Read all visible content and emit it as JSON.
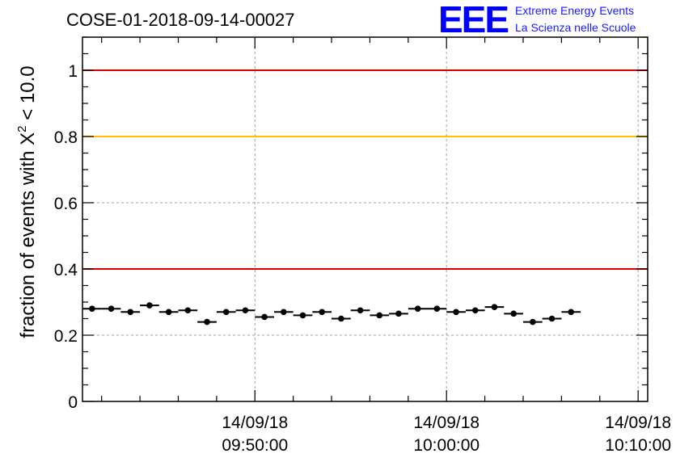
{
  "chart_data": {
    "type": "scatter",
    "title": "COSE-01-2018-09-14-00027",
    "ylabel": {
      "prefix": "fraction of events with ",
      "symbol": "X",
      "exponent": "2",
      "suffix": " < 10.0"
    },
    "ylim": [
      0,
      1.1
    ],
    "yticks": [
      {
        "value": 0,
        "label": "0"
      },
      {
        "value": 0.2,
        "label": "0.2"
      },
      {
        "value": 0.4,
        "label": "0.4"
      },
      {
        "value": 0.6,
        "label": "0.6"
      },
      {
        "value": 0.8,
        "label": "0.8"
      },
      {
        "value": 1,
        "label": "1"
      }
    ],
    "xlim": [
      "09:41:00",
      "10:10:30"
    ],
    "xticks": [
      {
        "time": "09:50:00",
        "date": "14/09/18",
        "label": "09:50:00"
      },
      {
        "time": "10:00:00",
        "date": "14/09/18",
        "label": "10:00:00"
      },
      {
        "time": "10:10:00",
        "date": "14/09/18",
        "label": "10:10:00"
      }
    ],
    "grid": true,
    "reference_lines": [
      {
        "y": 1.0,
        "color": "#e00000"
      },
      {
        "y": 0.8,
        "color": "#ffc000"
      },
      {
        "y": 0.4,
        "color": "#e00000"
      }
    ],
    "bin_width_minutes": 1,
    "points": [
      {
        "x": "09:41:30",
        "y": 0.28
      },
      {
        "x": "09:42:30",
        "y": 0.28
      },
      {
        "x": "09:43:30",
        "y": 0.27
      },
      {
        "x": "09:44:30",
        "y": 0.29
      },
      {
        "x": "09:45:30",
        "y": 0.27
      },
      {
        "x": "09:46:30",
        "y": 0.275
      },
      {
        "x": "09:47:30",
        "y": 0.24
      },
      {
        "x": "09:48:30",
        "y": 0.27
      },
      {
        "x": "09:49:30",
        "y": 0.275
      },
      {
        "x": "09:50:30",
        "y": 0.255
      },
      {
        "x": "09:51:30",
        "y": 0.27
      },
      {
        "x": "09:52:30",
        "y": 0.26
      },
      {
        "x": "09:53:30",
        "y": 0.27
      },
      {
        "x": "09:54:30",
        "y": 0.25
      },
      {
        "x": "09:55:30",
        "y": 0.275
      },
      {
        "x": "09:56:30",
        "y": 0.26
      },
      {
        "x": "09:57:30",
        "y": 0.265
      },
      {
        "x": "09:58:30",
        "y": 0.28
      },
      {
        "x": "09:59:30",
        "y": 0.28
      },
      {
        "x": "10:00:30",
        "y": 0.27
      },
      {
        "x": "10:01:30",
        "y": 0.275
      },
      {
        "x": "10:02:30",
        "y": 0.285
      },
      {
        "x": "10:03:30",
        "y": 0.265
      },
      {
        "x": "10:04:30",
        "y": 0.24
      },
      {
        "x": "10:05:30",
        "y": 0.25
      },
      {
        "x": "10:06:30",
        "y": 0.27
      }
    ],
    "colors": {
      "points": "#000000",
      "grid": "#a0a0a0",
      "axes": "#000000"
    }
  },
  "logo": {
    "mark": "EEE",
    "line1": "Extreme Energy Events",
    "line2": "La Scienza nelle Scuole",
    "color": "#0000ff"
  }
}
